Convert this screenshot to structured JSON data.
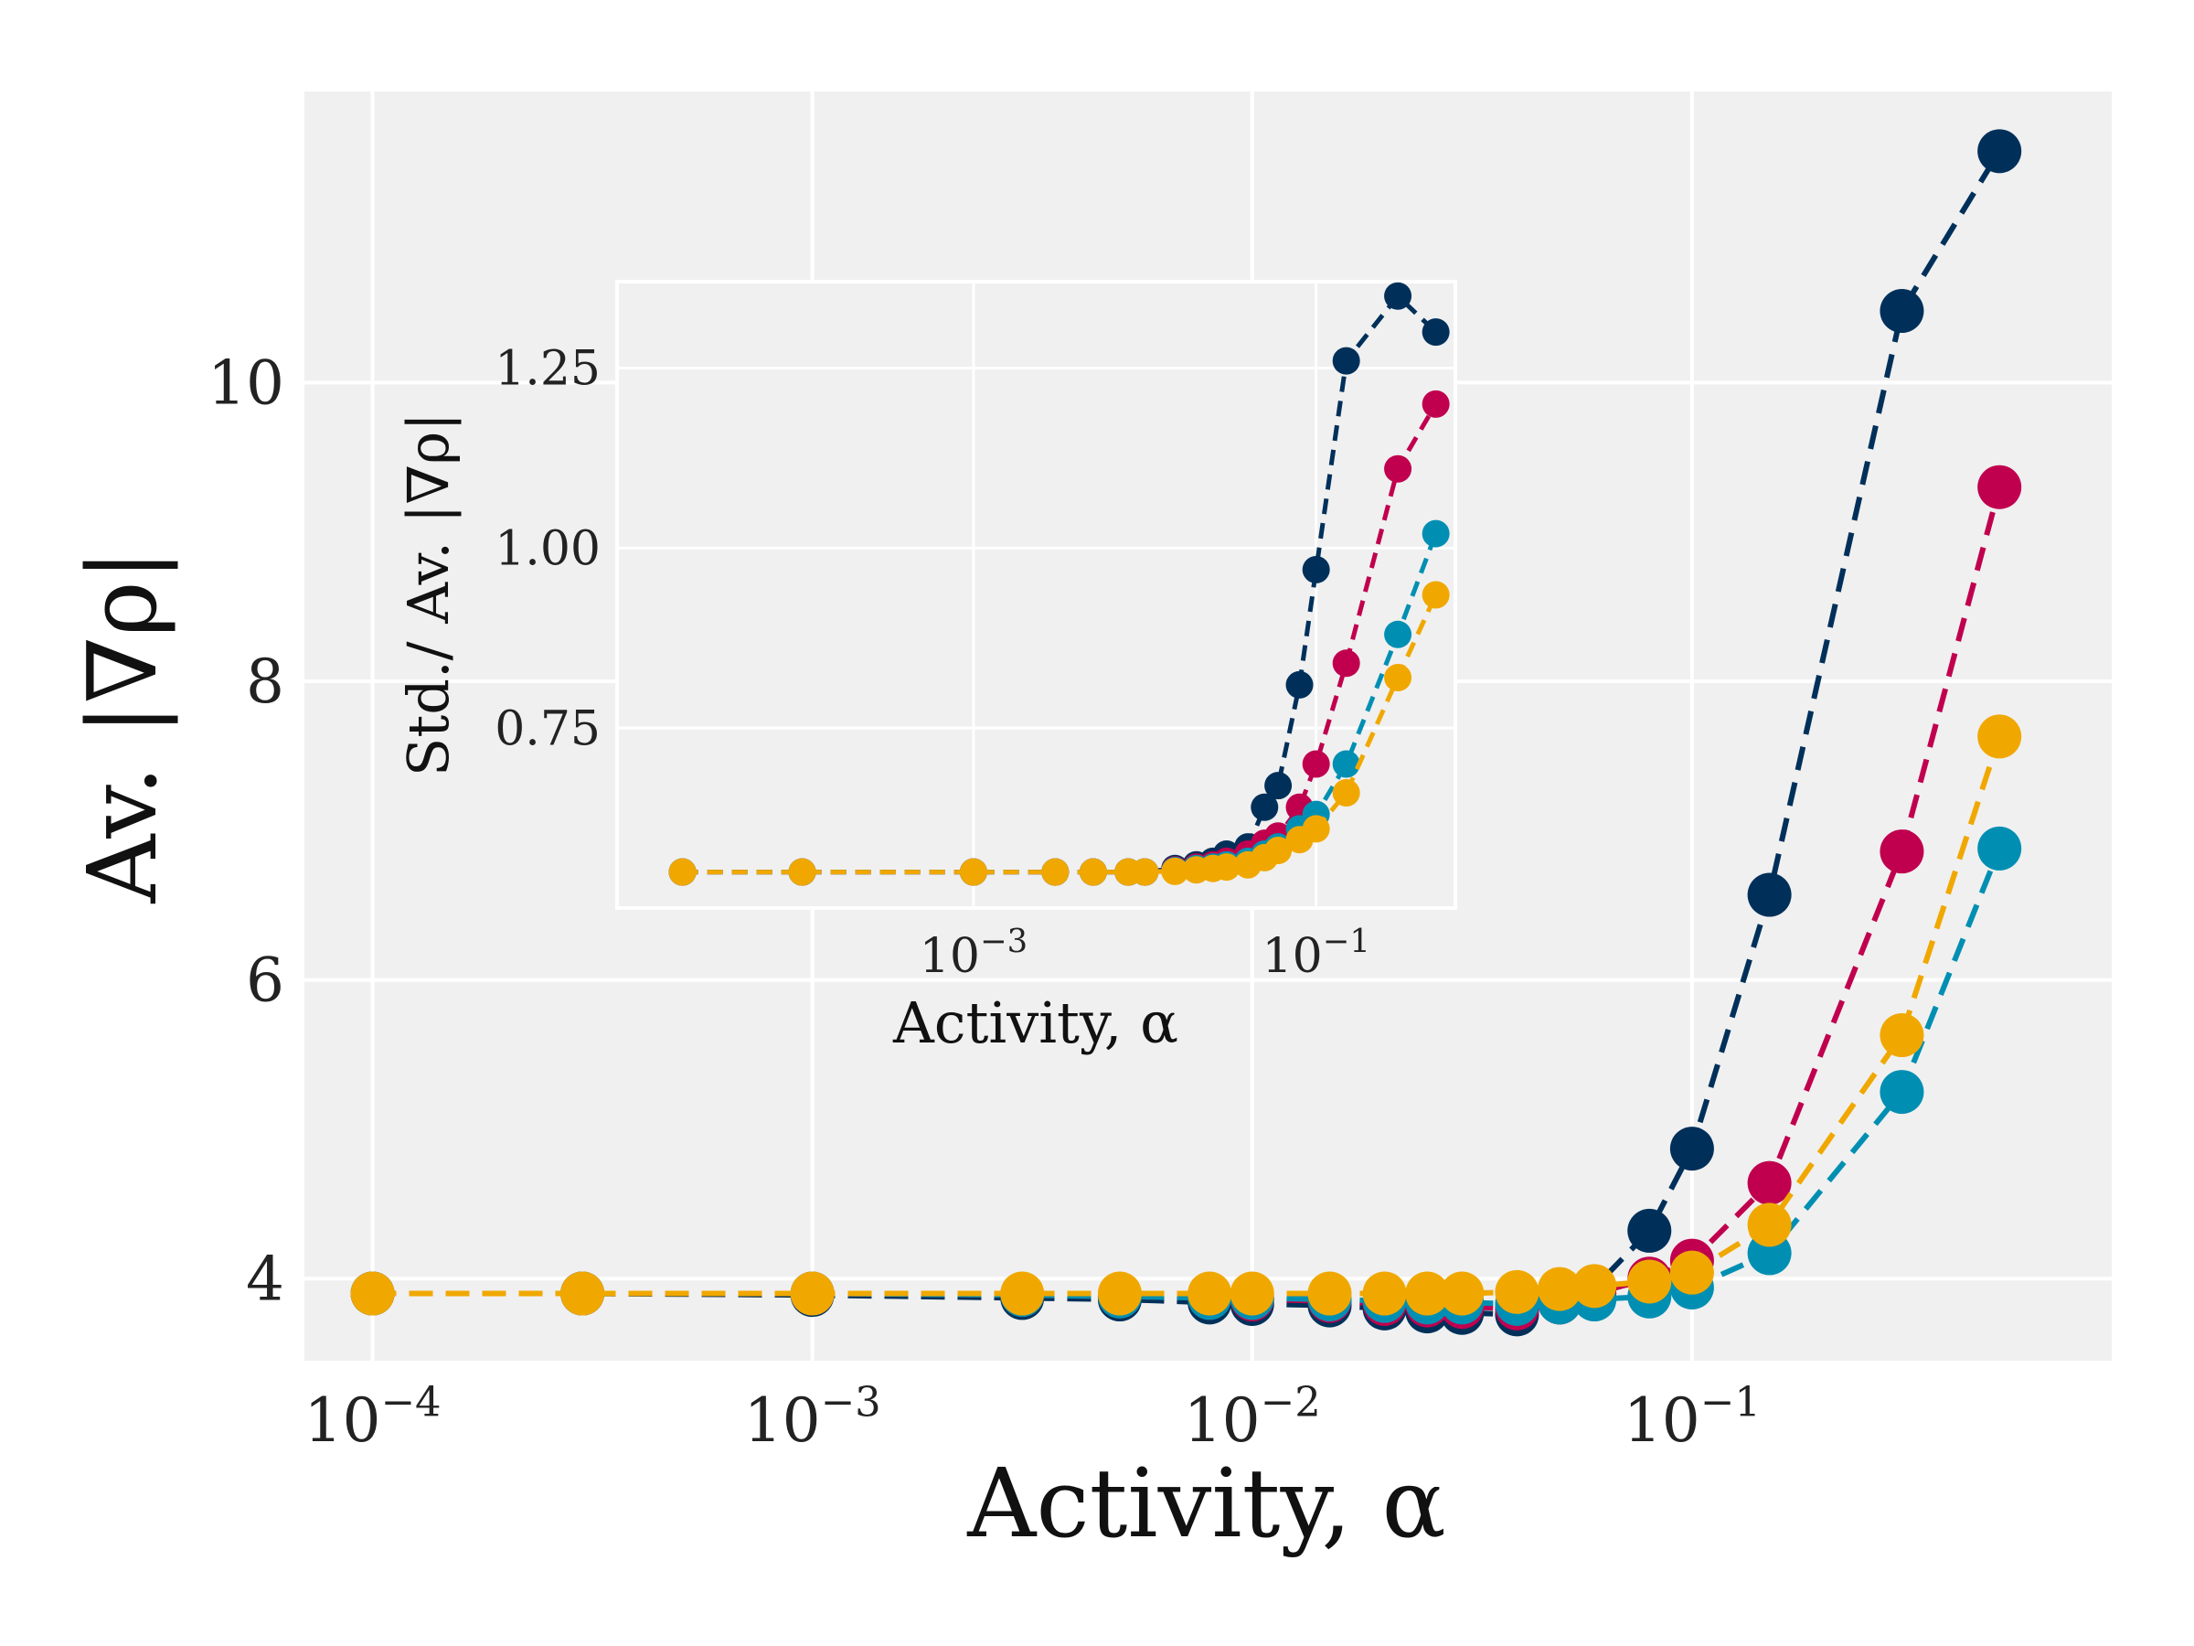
{
  "colors": {
    "background": "#ffffff",
    "panel": "#f0f0f0",
    "grid": "#ffffff",
    "navy": "#00305a",
    "crimson": "#c0004e",
    "teal": "#008fb2",
    "amber": "#f0a800"
  },
  "chart_data": [
    {
      "id": "main",
      "type": "line",
      "xlabel": "Activity, α",
      "ylabel": "Av. |∇ρ|",
      "xscale": "log",
      "xlim": [
        7e-05,
        0.9
      ],
      "ylim": [
        3.45,
        11.95
      ],
      "xticks": [
        {
          "v": 0.0001,
          "base": "10",
          "exp": "−4"
        },
        {
          "v": 0.001,
          "base": "10",
          "exp": "−3"
        },
        {
          "v": 0.01,
          "base": "10",
          "exp": "−2"
        },
        {
          "v": 0.1,
          "base": "10",
          "exp": "−1"
        }
      ],
      "yticks": [
        {
          "v": 4,
          "label": "4"
        },
        {
          "v": 6,
          "label": "6"
        },
        {
          "v": 8,
          "label": "8"
        },
        {
          "v": 10,
          "label": "10"
        }
      ],
      "grid": true,
      "line_style": "dashed",
      "marker": "circle",
      "x": [
        0.0001,
        0.0003,
        0.001,
        0.003,
        0.005,
        0.008,
        0.01,
        0.015,
        0.02,
        0.025,
        0.03,
        0.04,
        0.05,
        0.06,
        0.08,
        0.1,
        0.15,
        0.3,
        0.5
      ],
      "series": [
        {
          "color": "navy",
          "values": [
            3.9,
            3.9,
            3.89,
            3.87,
            3.86,
            3.84,
            3.83,
            3.82,
            3.8,
            3.78,
            3.77,
            3.76,
            3.84,
            3.94,
            4.32,
            4.87,
            6.57,
            10.48,
            11.55
          ]
        },
        {
          "color": "crimson",
          "values": [
            3.9,
            3.9,
            3.9,
            3.89,
            3.88,
            3.87,
            3.86,
            3.85,
            3.83,
            3.82,
            3.81,
            3.8,
            3.84,
            3.9,
            4.0,
            4.12,
            4.64,
            6.86,
            9.3
          ]
        },
        {
          "color": "teal",
          "values": [
            3.9,
            3.9,
            3.9,
            3.89,
            3.88,
            3.87,
            3.87,
            3.86,
            3.85,
            3.84,
            3.84,
            3.83,
            3.84,
            3.86,
            3.88,
            3.94,
            4.17,
            5.25,
            6.88
          ]
        },
        {
          "color": "amber",
          "values": [
            3.9,
            3.9,
            3.9,
            3.9,
            3.9,
            3.9,
            3.9,
            3.9,
            3.9,
            3.9,
            3.9,
            3.91,
            3.93,
            3.95,
            3.98,
            4.04,
            4.36,
            5.63,
            7.63
          ]
        }
      ]
    },
    {
      "id": "inset",
      "type": "line",
      "xlabel": "Activity, α",
      "ylabel": "Std./ Av. |∇ρ|",
      "xscale": "log",
      "xlim": [
        8.3e-06,
        0.65
      ],
      "ylim": [
        0.5,
        1.37
      ],
      "xticks": [
        {
          "v": 0.001,
          "base": "10",
          "exp": "−3"
        },
        {
          "v": 0.1,
          "base": "10",
          "exp": "−1"
        }
      ],
      "yticks": [
        {
          "v": 0.75,
          "label": "0.75"
        },
        {
          "v": 1.0,
          "label": "1.00"
        },
        {
          "v": 1.25,
          "label": "1.25"
        }
      ],
      "grid": true,
      "line_style": "dashed",
      "marker": "circle",
      "x": [
        2e-05,
        0.0001,
        0.001,
        0.003,
        0.005,
        0.008,
        0.01,
        0.015,
        0.02,
        0.025,
        0.03,
        0.04,
        0.05,
        0.06,
        0.08,
        0.1,
        0.15,
        0.3,
        0.5
      ],
      "series": [
        {
          "color": "navy",
          "values": [
            0.55,
            0.55,
            0.55,
            0.55,
            0.55,
            0.55,
            0.55,
            0.555,
            0.56,
            0.565,
            0.575,
            0.585,
            0.64,
            0.67,
            0.81,
            0.97,
            1.26,
            1.35,
            1.3
          ]
        },
        {
          "color": "crimson",
          "values": [
            0.55,
            0.55,
            0.55,
            0.55,
            0.55,
            0.55,
            0.55,
            0.553,
            0.557,
            0.56,
            0.565,
            0.575,
            0.59,
            0.6,
            0.64,
            0.7,
            0.84,
            1.11,
            1.2
          ]
        },
        {
          "color": "teal",
          "values": [
            0.55,
            0.55,
            0.55,
            0.55,
            0.55,
            0.55,
            0.55,
            0.552,
            0.555,
            0.557,
            0.56,
            0.565,
            0.575,
            0.585,
            0.61,
            0.63,
            0.7,
            0.88,
            1.02
          ]
        },
        {
          "color": "amber",
          "values": [
            0.55,
            0.55,
            0.55,
            0.55,
            0.55,
            0.55,
            0.55,
            0.551,
            0.553,
            0.555,
            0.557,
            0.56,
            0.57,
            0.58,
            0.595,
            0.61,
            0.66,
            0.82,
            0.935
          ]
        }
      ]
    }
  ]
}
